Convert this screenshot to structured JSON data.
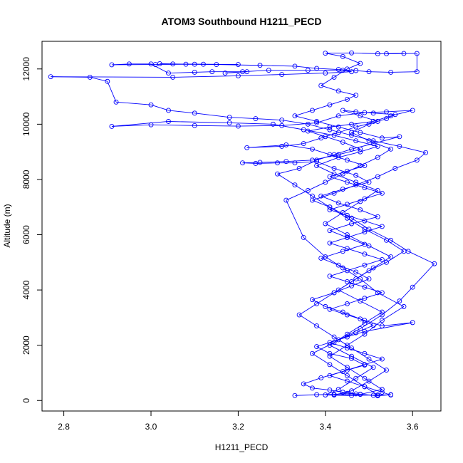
{
  "chart_data": {
    "type": "line",
    "title": "ATOM3 Southbound H1211_PECD",
    "xlabel": "H1211_PECD",
    "ylabel": "Altitude (m)",
    "xlim": [
      2.75,
      3.665
    ],
    "ylim": [
      -380,
      13000
    ],
    "xticks": [
      2.8,
      3.0,
      3.2,
      3.4,
      3.6
    ],
    "yticks": [
      0,
      2000,
      4000,
      6000,
      8000,
      10000,
      12000
    ],
    "grid": false,
    "legend": "none",
    "marker": "open-circle",
    "color": "#0000ff",
    "series": [
      {
        "values": [
          [
            3.33,
            180
          ],
          [
            3.38,
            210
          ],
          [
            3.42,
            220
          ],
          [
            3.45,
            260
          ],
          [
            3.48,
            230
          ],
          [
            3.51,
            190
          ],
          [
            3.55,
            210
          ],
          [
            3.52,
            170
          ],
          [
            3.47,
            240
          ],
          [
            3.44,
            300
          ],
          [
            3.41,
            380
          ],
          [
            3.37,
            450
          ],
          [
            3.35,
            600
          ],
          [
            3.39,
            820
          ],
          [
            3.44,
            1050
          ],
          [
            3.49,
            1280
          ],
          [
            3.46,
            1520
          ],
          [
            3.41,
            1700
          ],
          [
            3.38,
            1950
          ],
          [
            3.43,
            2200
          ],
          [
            3.47,
            2450
          ],
          [
            3.51,
            2720
          ],
          [
            3.48,
            2950
          ],
          [
            3.44,
            3200
          ],
          [
            3.4,
            3400
          ],
          [
            3.37,
            3650
          ],
          [
            3.42,
            3900
          ],
          [
            3.46,
            4150
          ],
          [
            3.5,
            4400
          ],
          [
            3.47,
            4650
          ],
          [
            3.43,
            4900
          ],
          [
            3.39,
            5150
          ],
          [
            3.44,
            5400
          ],
          [
            3.49,
            5650
          ],
          [
            3.45,
            5900
          ],
          [
            3.41,
            6150
          ],
          [
            3.46,
            6400
          ],
          [
            3.52,
            6650
          ],
          [
            3.48,
            6900
          ],
          [
            3.43,
            7150
          ],
          [
            3.39,
            7400
          ],
          [
            3.44,
            7650
          ],
          [
            3.5,
            7900
          ],
          [
            3.47,
            8150
          ],
          [
            3.42,
            8400
          ],
          [
            3.38,
            8650
          ],
          [
            3.33,
            8600
          ],
          [
            3.29,
            8600
          ],
          [
            3.24,
            8580
          ],
          [
            3.21,
            8600
          ],
          [
            3.25,
            8620
          ],
          [
            3.31,
            8650
          ],
          [
            3.37,
            8700
          ],
          [
            3.43,
            8900
          ],
          [
            3.48,
            9100
          ],
          [
            3.44,
            9350
          ],
          [
            3.4,
            9550
          ],
          [
            3.36,
            9750
          ],
          [
            3.41,
            9900
          ],
          [
            3.46,
            10000
          ],
          [
            3.51,
            10100
          ],
          [
            3.55,
            10300
          ],
          [
            3.6,
            10500
          ],
          [
            3.54,
            10450
          ],
          [
            3.49,
            10420
          ],
          [
            3.43,
            10300
          ],
          [
            3.38,
            10050
          ],
          [
            3.3,
            9950
          ],
          [
            3.2,
            9930
          ],
          [
            3.1,
            9950
          ],
          [
            3.0,
            9980
          ],
          [
            2.91,
            9920
          ],
          [
            3.04,
            10100
          ],
          [
            3.18,
            10050
          ],
          [
            3.28,
            10000
          ],
          [
            3.35,
            9800
          ],
          [
            3.42,
            9600
          ],
          [
            3.47,
            9400
          ],
          [
            3.52,
            9200
          ],
          [
            3.48,
            9000
          ],
          [
            3.43,
            8800
          ],
          [
            3.38,
            8500
          ],
          [
            3.42,
            8200
          ],
          [
            3.47,
            7900
          ],
          [
            3.52,
            7600
          ],
          [
            3.48,
            7200
          ],
          [
            3.44,
            6800
          ],
          [
            3.4,
            6400
          ],
          [
            3.45,
            6000
          ],
          [
            3.5,
            5600
          ],
          [
            3.55,
            5200
          ],
          [
            3.51,
            4800
          ],
          [
            3.47,
            4400
          ],
          [
            3.43,
            4000
          ],
          [
            3.48,
            3600
          ],
          [
            3.53,
            3200
          ],
          [
            3.49,
            2800
          ],
          [
            3.45,
            2400
          ],
          [
            3.41,
            2000
          ],
          [
            3.46,
            1600
          ],
          [
            3.51,
            1200
          ],
          [
            3.47,
            800
          ],
          [
            3.43,
            400
          ],
          [
            3.4,
            200
          ],
          [
            3.46,
            180
          ],
          [
            3.52,
            200
          ],
          [
            3.49,
            500
          ],
          [
            3.45,
            900
          ],
          [
            3.41,
            1300
          ],
          [
            3.37,
            1700
          ],
          [
            3.42,
            2100
          ],
          [
            3.48,
            2600
          ],
          [
            3.53,
            3100
          ],
          [
            3.57,
            3600
          ],
          [
            3.6,
            4100
          ],
          [
            3.65,
            4950
          ],
          [
            3.59,
            5400
          ],
          [
            3.55,
            5800
          ],
          [
            3.5,
            6200
          ],
          [
            3.46,
            6600
          ],
          [
            3.41,
            7000
          ],
          [
            3.37,
            7250
          ],
          [
            3.42,
            7500
          ],
          [
            3.47,
            7800
          ],
          [
            3.52,
            8100
          ],
          [
            3.56,
            8400
          ],
          [
            3.61,
            8700
          ],
          [
            3.63,
            8970
          ],
          [
            3.57,
            9200
          ],
          [
            3.51,
            9400
          ],
          [
            3.46,
            9600
          ],
          [
            3.41,
            9800
          ],
          [
            3.36,
            10000
          ],
          [
            3.3,
            10150
          ],
          [
            3.24,
            10200
          ],
          [
            3.18,
            10250
          ],
          [
            3.1,
            10400
          ],
          [
            3.04,
            10500
          ],
          [
            3.0,
            10700
          ],
          [
            2.92,
            10800
          ],
          [
            2.9,
            11550
          ],
          [
            2.86,
            11700
          ],
          [
            2.77,
            11720
          ],
          [
            3.05,
            11700
          ],
          [
            3.2,
            11750
          ],
          [
            3.3,
            11800
          ],
          [
            3.4,
            11850
          ],
          [
            3.46,
            11900
          ],
          [
            3.44,
            11950
          ],
          [
            3.36,
            11950
          ],
          [
            3.27,
            11950
          ],
          [
            3.21,
            11900
          ],
          [
            3.17,
            11850
          ],
          [
            3.22,
            11900
          ],
          [
            3.14,
            11900
          ],
          [
            3.1,
            11880
          ],
          [
            3.04,
            11850
          ],
          [
            3.0,
            12180
          ],
          [
            2.95,
            12180
          ],
          [
            2.91,
            12150
          ],
          [
            3.01,
            12160
          ],
          [
            3.1,
            12170
          ],
          [
            3.2,
            12160
          ],
          [
            3.12,
            12170
          ],
          [
            3.05,
            12180
          ],
          [
            3.02,
            12190
          ],
          [
            3.08,
            12170
          ],
          [
            3.15,
            12160
          ],
          [
            3.25,
            12130
          ],
          [
            3.33,
            12100
          ],
          [
            3.38,
            12020
          ],
          [
            3.43,
            11980
          ],
          [
            3.47,
            11940
          ],
          [
            3.5,
            11900
          ],
          [
            3.55,
            11880
          ],
          [
            3.61,
            11900
          ],
          [
            3.61,
            12560
          ],
          [
            3.54,
            12550
          ],
          [
            3.58,
            12560
          ],
          [
            3.52,
            12550
          ],
          [
            3.46,
            12580
          ],
          [
            3.4,
            12570
          ],
          [
            3.44,
            12450
          ],
          [
            3.48,
            12200
          ],
          [
            3.45,
            12000
          ],
          [
            3.42,
            11700
          ],
          [
            3.39,
            11400
          ],
          [
            3.43,
            11200
          ],
          [
            3.47,
            11050
          ],
          [
            3.45,
            10900
          ],
          [
            3.41,
            10700
          ],
          [
            3.37,
            10500
          ],
          [
            3.33,
            10300
          ],
          [
            3.38,
            10100
          ],
          [
            3.43,
            9900
          ],
          [
            3.48,
            9700
          ],
          [
            3.53,
            9500
          ],
          [
            3.57,
            9550
          ],
          [
            3.51,
            9300
          ],
          [
            3.46,
            9100
          ],
          [
            3.42,
            8900
          ],
          [
            3.38,
            8700
          ],
          [
            3.34,
            8400
          ],
          [
            3.29,
            8200
          ],
          [
            3.33,
            7800
          ],
          [
            3.37,
            7400
          ],
          [
            3.41,
            7000
          ],
          [
            3.45,
            6600
          ],
          [
            3.49,
            6200
          ],
          [
            3.54,
            5800
          ],
          [
            3.58,
            5400
          ],
          [
            3.54,
            5000
          ],
          [
            3.5,
            4700
          ],
          [
            3.46,
            4300
          ],
          [
            3.42,
            3900
          ],
          [
            3.38,
            3500
          ],
          [
            3.34,
            3100
          ],
          [
            3.38,
            2700
          ],
          [
            3.42,
            2300
          ],
          [
            3.46,
            1900
          ],
          [
            3.5,
            1500
          ],
          [
            3.54,
            1100
          ],
          [
            3.5,
            700
          ],
          [
            3.46,
            350
          ],
          [
            3.42,
            200
          ],
          [
            3.48,
            220
          ],
          [
            3.53,
            400
          ],
          [
            3.49,
            800
          ],
          [
            3.45,
            1200
          ],
          [
            3.41,
            1600
          ],
          [
            3.45,
            2000
          ],
          [
            3.49,
            2400
          ],
          [
            3.53,
            2900
          ],
          [
            3.58,
            3400
          ],
          [
            3.52,
            3900
          ],
          [
            3.48,
            4400
          ],
          [
            3.44,
            4800
          ],
          [
            3.4,
            5200
          ],
          [
            3.35,
            5900
          ],
          [
            3.31,
            7250
          ],
          [
            3.36,
            7600
          ],
          [
            3.4,
            7900
          ],
          [
            3.44,
            8200
          ],
          [
            3.48,
            8500
          ],
          [
            3.52,
            8800
          ],
          [
            3.55,
            9100
          ],
          [
            3.5,
            9400
          ],
          [
            3.46,
            9700
          ],
          [
            3.5,
            10000
          ],
          [
            3.54,
            10200
          ],
          [
            3.56,
            10350
          ],
          [
            3.51,
            10400
          ],
          [
            3.47,
            10450
          ],
          [
            3.44,
            10500
          ],
          [
            3.48,
            10300
          ],
          [
            3.52,
            10100
          ],
          [
            3.47,
            9900
          ],
          [
            3.43,
            9700
          ],
          [
            3.39,
            9500
          ],
          [
            3.35,
            9300
          ],
          [
            3.3,
            9200
          ],
          [
            3.22,
            9150
          ],
          [
            3.31,
            9250
          ],
          [
            3.37,
            9100
          ],
          [
            3.41,
            8900
          ],
          [
            3.45,
            8700
          ],
          [
            3.49,
            8500
          ],
          [
            3.45,
            8300
          ],
          [
            3.41,
            8100
          ],
          [
            3.45,
            7900
          ],
          [
            3.49,
            7700
          ],
          [
            3.53,
            7500
          ],
          [
            3.49,
            7300
          ],
          [
            3.45,
            7100
          ],
          [
            3.41,
            6900
          ],
          [
            3.45,
            6700
          ],
          [
            3.49,
            6500
          ],
          [
            3.53,
            6300
          ],
          [
            3.49,
            6100
          ],
          [
            3.45,
            5900
          ],
          [
            3.41,
            5700
          ],
          [
            3.45,
            5500
          ],
          [
            3.49,
            5300
          ],
          [
            3.53,
            5100
          ],
          [
            3.49,
            4900
          ],
          [
            3.45,
            4700
          ],
          [
            3.41,
            4500
          ],
          [
            3.45,
            4300
          ],
          [
            3.49,
            4100
          ],
          [
            3.53,
            3900
          ],
          [
            3.49,
            3700
          ],
          [
            3.45,
            3500
          ],
          [
            3.41,
            3300
          ],
          [
            3.45,
            3100
          ],
          [
            3.49,
            2900
          ],
          [
            3.53,
            2700
          ],
          [
            3.6,
            2820
          ],
          [
            3.49,
            2500
          ],
          [
            3.45,
            2300
          ],
          [
            3.41,
            2100
          ],
          [
            3.45,
            1900
          ],
          [
            3.49,
            1700
          ],
          [
            3.53,
            1500
          ],
          [
            3.49,
            1300
          ],
          [
            3.45,
            1100
          ],
          [
            3.41,
            900
          ],
          [
            3.45,
            700
          ],
          [
            3.49,
            500
          ],
          [
            3.53,
            300
          ],
          [
            3.55,
            200
          ]
        ]
      }
    ]
  }
}
